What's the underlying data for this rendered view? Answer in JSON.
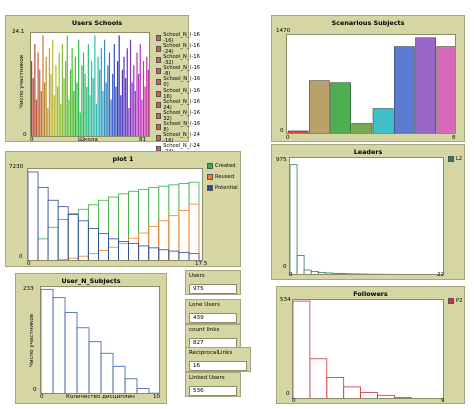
{
  "users_schools": {
    "title": "Users Schools",
    "ylabel": "Число участников",
    "xlabel": "Школа",
    "ymax_label": "24.1",
    "y0_label": "0",
    "x0_label": "0",
    "xmax_label": "81",
    "legend": [
      "School_N_(-16 -16)",
      "School_N_(-16 -24)",
      "School_N_(-16 -32)",
      "School_N_(-16 -8)",
      "School_N_(-16 0)",
      "School_N_(-16 16)",
      "School_N_(-16 24)",
      "School_N_(-16 32)",
      "School_N_(-16 8)",
      "School_N_(-24 -16)",
      "School_N_(-24 -24)",
      "School_N_(-24 -32)",
      "School_N_(-24 -8)"
    ],
    "legend_colors": [
      "#d55a5a",
      "#d55a5a",
      "#d55a5a",
      "#d55a5a",
      "#d55a5a",
      "#d55a5a",
      "#d55a5a",
      "#d55a5a",
      "#d55a5a",
      "#d55a5a",
      "#d55a5a",
      "#d55a5a",
      "#d55a5a"
    ]
  },
  "scenarious_subjects": {
    "title": "Scenarious Subjects",
    "ymax_label": "1470",
    "y0_label": "0",
    "x0_label": "0",
    "xmax_label": "8"
  },
  "plot1": {
    "title": "plot 1",
    "ymax_label": "7230",
    "y0_label": "0",
    "x0_label": "0",
    "xmax_label": "17.5",
    "legend": [
      {
        "label": "Created",
        "color": "#3cb043"
      },
      {
        "label": "Reused",
        "color": "#f07d28"
      },
      {
        "label": "Potential",
        "color": "#2d4a9a"
      }
    ]
  },
  "leaders": {
    "title": "Leaders",
    "ymax_label": "975",
    "y0_label": "0",
    "x0_label": "0",
    "xmax_label": "22",
    "legend": "L2",
    "color": "#2e7d5b"
  },
  "user_n_subjects": {
    "title": "User_N_Subjects",
    "ylabel": "Число участников",
    "xlabel": "Количество дисциплин",
    "ymax_label": "233",
    "y0_label": "0",
    "x0_label": "0",
    "xmax_label": "10",
    "color": "#3a5ba8"
  },
  "followers": {
    "title": "Followers",
    "ymax_label": "534",
    "y0_label": "0",
    "x0_label": "0",
    "xmax_label": "9",
    "legend": "P2",
    "color": "#d0303a"
  },
  "monitors": [
    {
      "label": "Users",
      "value": "975"
    },
    {
      "label": "Lone Users",
      "value": "439"
    },
    {
      "label": "count links",
      "value": "827"
    },
    {
      "label": "ReciprocalLinks",
      "value": "16"
    },
    {
      "label": "Linked Users",
      "value": "536"
    }
  ],
  "chart_data": [
    {
      "type": "bar",
      "title": "Users Schools",
      "xlabel": "Школа",
      "ylabel": "Число участников",
      "ylim": [
        0,
        24.1
      ],
      "xlim": [
        0,
        81
      ],
      "values": [
        18,
        14,
        22,
        9,
        20,
        16,
        11,
        24,
        13,
        19,
        7,
        21,
        15,
        23,
        10,
        17,
        12,
        20,
        8,
        22,
        14,
        18,
        24,
        9,
        16,
        21,
        11,
        19,
        13,
        23,
        6,
        17,
        20,
        15,
        12,
        22,
        10,
        18,
        14,
        24,
        8,
        19,
        16,
        21,
        11,
        23,
        13,
        17,
        20,
        9,
        15,
        22,
        12,
        18,
        24,
        10,
        16,
        19,
        14,
        21,
        7,
        23,
        13,
        17,
        11,
        20,
        15,
        22,
        9,
        18,
        12,
        19,
        16,
        13
      ],
      "grid": false
    },
    {
      "type": "bar",
      "title": "Scenarious Subjects",
      "xlim": [
        0,
        8
      ],
      "ylim": [
        0,
        1470
      ],
      "x": [
        0,
        1,
        2,
        3,
        4,
        5,
        6,
        7
      ],
      "values": [
        60,
        800,
        770,
        170,
        390,
        1300,
        1430,
        1300
      ],
      "colors": [
        "#d04848",
        "#b9a26a",
        "#4caf50",
        "#7aa854",
        "#3fc0c8",
        "#5a7bd0",
        "#9a66c7",
        "#d46bb8"
      ],
      "grid": false
    },
    {
      "type": "line",
      "title": "plot 1",
      "xlim": [
        0,
        17.5
      ],
      "ylim": [
        0,
        7230
      ],
      "x": [
        0,
        1,
        2,
        3,
        4,
        5,
        6,
        7,
        8,
        9,
        10,
        11,
        12,
        13,
        14,
        15,
        16
      ],
      "series": [
        {
          "name": "Created",
          "values": [
            0,
            1800,
            2700,
            3300,
            3750,
            4100,
            4450,
            4800,
            5050,
            5300,
            5500,
            5650,
            5800,
            5900,
            6000,
            6100,
            6200
          ]
        },
        {
          "name": "Reused",
          "values": [
            0,
            0,
            90,
            180,
            300,
            450,
            650,
            900,
            1150,
            1450,
            1850,
            2250,
            2750,
            3200,
            3600,
            4000,
            4500
          ]
        },
        {
          "name": "Potential",
          "values": [
            7000,
            5800,
            4800,
            4300,
            3700,
            3200,
            2600,
            2200,
            1800,
            1600,
            1450,
            1250,
            1100,
            950,
            850,
            750,
            650
          ]
        }
      ],
      "grid": false
    },
    {
      "type": "bar",
      "title": "Leaders",
      "xlim": [
        0,
        22
      ],
      "ylim": [
        0,
        975
      ],
      "series": [
        {
          "name": "L2",
          "values": [
            920,
            170,
            50,
            38,
            30,
            25,
            22,
            20,
            18,
            17,
            16,
            15,
            15,
            14,
            14,
            13,
            13,
            12,
            12,
            12,
            11
          ]
        }
      ],
      "grid": false
    },
    {
      "type": "bar",
      "title": "User_N_Subjects",
      "xlabel": "Количество дисциплин",
      "ylabel": "Число участников",
      "xlim": [
        0,
        10
      ],
      "ylim": [
        0,
        233
      ],
      "values": [
        228,
        210,
        178,
        145,
        115,
        90,
        62,
        35,
        14,
        4
      ],
      "grid": false
    },
    {
      "type": "bar",
      "title": "Followers",
      "xlim": [
        0,
        9
      ],
      "ylim": [
        0,
        534
      ],
      "series": [
        {
          "name": "P2",
          "values": [
            528,
            220,
            120,
            70,
            40,
            25,
            14,
            8,
            4
          ]
        }
      ],
      "grid": false
    }
  ]
}
